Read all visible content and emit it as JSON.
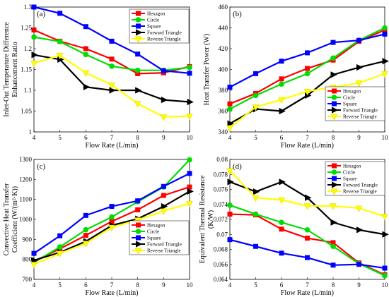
{
  "chart_data": [
    {
      "type": "line",
      "panel_label": "(a)",
      "xlabel": "Flow Rate (L/min)",
      "ylabel": [
        "Inlet-Out Temperature Difference",
        "Enhancement Ratio"
      ],
      "xlim": [
        4,
        10
      ],
      "ylim": [
        1.0,
        1.3
      ],
      "xticks": [
        "4",
        "5",
        "6",
        "7",
        "8",
        "9",
        "10"
      ],
      "yticks": [
        "1",
        "1.05",
        "1.1",
        "1.15",
        "1.2",
        "1.25",
        "1.3"
      ],
      "legend_position": "top-right",
      "x": [
        4,
        5,
        6,
        7,
        8,
        9,
        10
      ],
      "series": [
        {
          "name": "Hexagon",
          "color": "#ff0000",
          "marker": "square",
          "values": [
            1.245,
            1.218,
            1.2,
            1.175,
            1.14,
            1.142,
            1.157
          ]
        },
        {
          "name": "Circle",
          "color": "#00dd00",
          "marker": "circle",
          "values": [
            1.228,
            1.217,
            1.186,
            1.158,
            1.148,
            1.148,
            1.155
          ]
        },
        {
          "name": "Square",
          "color": "#0000ff",
          "marker": "square",
          "values": [
            1.3,
            1.285,
            1.253,
            1.218,
            1.187,
            1.147,
            1.141
          ]
        },
        {
          "name": "Forward Triangle",
          "color": "#000000",
          "marker": "triangle-right",
          "values": [
            1.185,
            1.174,
            1.108,
            1.1,
            1.1,
            1.077,
            1.072
          ]
        },
        {
          "name": "Reverse Triangle",
          "color": "#ffff00",
          "marker": "triangle-down",
          "values": [
            1.165,
            1.184,
            1.142,
            1.113,
            1.068,
            1.036,
            1.038
          ]
        }
      ]
    },
    {
      "type": "line",
      "panel_label": "(b)",
      "xlabel": "Flow Rate (L/min)",
      "ylabel": [
        "Heat Transfer Power (W)"
      ],
      "xlim": [
        4,
        10
      ],
      "ylim": [
        340,
        460
      ],
      "xticks": [
        "4",
        "5",
        "6",
        "7",
        "8",
        "9",
        "10"
      ],
      "yticks": [
        "340",
        "360",
        "380",
        "400",
        "420",
        "440",
        "460"
      ],
      "legend_position": "bottom-right",
      "x": [
        4,
        5,
        6,
        7,
        8,
        9,
        10
      ],
      "series": [
        {
          "name": "Hexagon",
          "color": "#ff0000",
          "marker": "square",
          "values": [
            367,
            377,
            391,
            401,
            409,
            427,
            438
          ]
        },
        {
          "name": "Circle",
          "color": "#00dd00",
          "marker": "circle",
          "values": [
            362,
            375,
            386,
            396,
            411,
            428,
            440
          ]
        },
        {
          "name": "Square",
          "color": "#0000ff",
          "marker": "square",
          "values": [
            383,
            396,
            408,
            416,
            426,
            428,
            434
          ]
        },
        {
          "name": "Forward Triangle",
          "color": "#000000",
          "marker": "triangle-right",
          "values": [
            348,
            362,
            360,
            375,
            395,
            402,
            408
          ]
        },
        {
          "name": "Reverse Triangle",
          "color": "#ffff00",
          "marker": "triangle-down",
          "values": [
            344,
            364,
            371,
            379,
            383,
            387,
            396
          ]
        }
      ]
    },
    {
      "type": "line",
      "panel_label": "(c)",
      "xlabel": "Flow Rate (L/min)",
      "ylabel": [
        "Convective Heat Transfer",
        "Coefficient (W/(m²·K))"
      ],
      "xlim": [
        4,
        10
      ],
      "ylim": [
        700,
        1300
      ],
      "xticks": [
        "4",
        "5",
        "6",
        "7",
        "8",
        "9",
        "10"
      ],
      "yticks": [
        "700",
        "800",
        "900",
        "1000",
        "1100",
        "1200",
        "1300"
      ],
      "legend_position": "bottom-right",
      "x": [
        4,
        5,
        6,
        7,
        8,
        9,
        10
      ],
      "series": [
        {
          "name": "Hexagon",
          "color": "#ff0000",
          "marker": "square",
          "values": [
            790,
            853,
            920,
            990,
            1048,
            1120,
            1162
          ]
        },
        {
          "name": "Circle",
          "color": "#00dd00",
          "marker": "circle",
          "values": [
            785,
            862,
            948,
            1012,
            1088,
            1162,
            1298
          ]
        },
        {
          "name": "Square",
          "color": "#0000ff",
          "marker": "square",
          "values": [
            830,
            918,
            1020,
            1065,
            1093,
            1165,
            1230
          ]
        },
        {
          "name": "Forward Triangle",
          "color": "#000000",
          "marker": "triangle-right",
          "values": [
            795,
            835,
            890,
            970,
            1003,
            1065,
            1140
          ]
        },
        {
          "name": "Reverse Triangle",
          "color": "#ffff00",
          "marker": "triangle-down",
          "values": [
            775,
            830,
            880,
            960,
            997,
            1042,
            1080
          ]
        }
      ]
    },
    {
      "type": "line",
      "panel_label": "(d)",
      "xlabel": "Flow Rate (L/min)",
      "ylabel": [
        "Equivalent Thermal Resistance",
        "(K/W)"
      ],
      "xlim": [
        4,
        10
      ],
      "ylim": [
        0.064,
        0.08
      ],
      "xticks": [
        "4",
        "5",
        "6",
        "7",
        "8",
        "9",
        "10"
      ],
      "yticks": [
        "0.064",
        "0.066",
        "0.068",
        "0.07",
        "0.072",
        "0.074",
        "0.076",
        "0.078",
        "0.08"
      ],
      "legend_position": "top-right",
      "x": [
        4,
        5,
        6,
        7,
        8,
        9,
        10
      ],
      "series": [
        {
          "name": "Hexagon",
          "color": "#ff0000",
          "marker": "square",
          "values": [
            0.0727,
            0.0726,
            0.0707,
            0.0695,
            0.0689,
            0.0662,
            0.0646
          ]
        },
        {
          "name": "Circle",
          "color": "#00dd00",
          "marker": "circle",
          "values": [
            0.0739,
            0.0727,
            0.0716,
            0.0706,
            0.0684,
            0.0661,
            0.0645
          ]
        },
        {
          "name": "Square",
          "color": "#0000ff",
          "marker": "square",
          "values": [
            0.0693,
            0.0684,
            0.0675,
            0.0669,
            0.0659,
            0.066,
            0.0655
          ]
        },
        {
          "name": "Forward Triangle",
          "color": "#000000",
          "marker": "triangle-right",
          "values": [
            0.077,
            0.0757,
            0.077,
            0.0749,
            0.0716,
            0.0706,
            0.07
          ]
        },
        {
          "name": "Reverse Triangle",
          "color": "#ffff00",
          "marker": "triangle-down",
          "values": [
            0.0785,
            0.0749,
            0.0746,
            0.0738,
            0.0738,
            0.0735,
            0.0724
          ]
        }
      ]
    }
  ]
}
